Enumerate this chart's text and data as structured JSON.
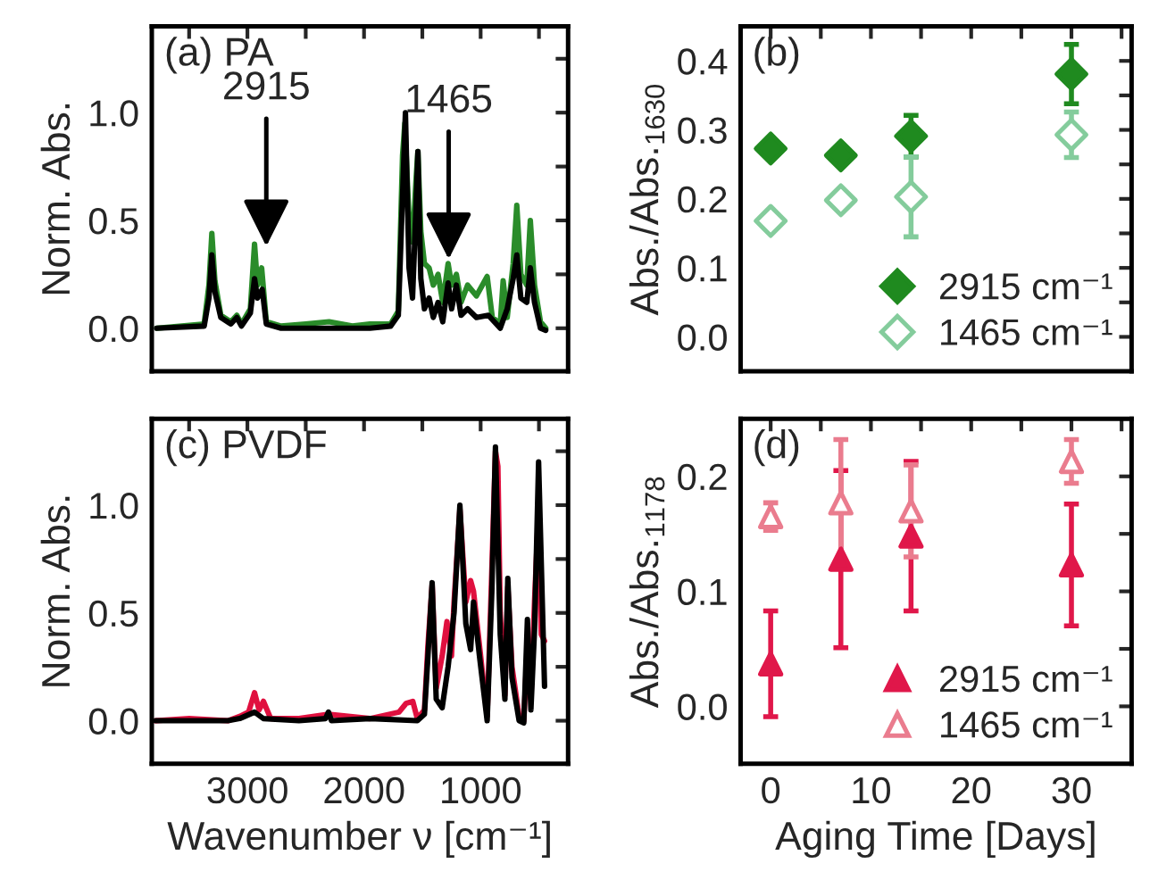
{
  "chart_data": [
    {
      "type": "line",
      "ylabel": "Norm. Abs.",
      "annotations": [
        "(a) PA",
        {
          "text": "2915",
          "x": 2838,
          "y": 0.38
        },
        {
          "text": "1465",
          "x": 1274,
          "y": 0.32
        }
      ],
      "xlim": [
        3820,
        250
      ],
      "xticks": [
        {
          "value": 3500,
          "label": null
        },
        {
          "value": 3000,
          "label": null
        },
        {
          "value": 2500,
          "label": null
        },
        {
          "value": 2000,
          "label": null
        },
        {
          "value": 1500,
          "label": null
        },
        {
          "value": 1000,
          "label": null
        },
        {
          "value": 500,
          "label": null
        }
      ],
      "ylim": [
        -0.2,
        1.4
      ],
      "yticks": [
        {
          "value": 0,
          "label": "0.0"
        },
        {
          "value": 0.25,
          "label": null
        },
        0.5,
        {
          "value": 0.75,
          "label": null
        },
        {
          "value": 1,
          "label": "1.0"
        },
        {
          "value": 1.25,
          "label": null
        }
      ],
      "tick_labels": "y",
      "grid": false,
      "line_style": "solid",
      "marker": "none",
      "series": [
        {
          "color": "#2a8c2a",
          "x": [
            3777,
            3371,
            3330,
            3305,
            3279,
            3228,
            3142,
            3091,
            3051,
            2975,
            2939,
            2914,
            2878,
            2838,
            2711,
            2500,
            2300,
            2100,
            1949,
            1772,
            1706,
            1670,
            1650,
            1614,
            1584,
            1553,
            1538,
            1513,
            1482,
            1442,
            1406,
            1365,
            1325,
            1279,
            1249,
            1208,
            1168,
            1112,
            1036,
            944,
            900,
            832,
            807,
            772,
            721,
            690,
            655,
            604,
            574,
            538,
            487,
            442
          ],
          "values": [
            0.0,
            0.02,
            0.2,
            0.44,
            0.22,
            0.06,
            0.03,
            0.06,
            0.02,
            0.09,
            0.39,
            0.2,
            0.28,
            0.03,
            0.01,
            0.02,
            0.03,
            0.01,
            0.02,
            0.02,
            0.08,
            0.8,
            0.95,
            0.5,
            0.4,
            0.7,
            0.82,
            0.45,
            0.3,
            0.28,
            0.2,
            0.25,
            0.12,
            0.3,
            0.2,
            0.25,
            0.12,
            0.2,
            0.15,
            0.24,
            0.05,
            0.02,
            0.22,
            0.05,
            0.3,
            0.57,
            0.25,
            0.2,
            0.5,
            0.2,
            0.03,
            0.0
          ]
        },
        {
          "color": "#000000",
          "x": [
            3777,
            3371,
            3330,
            3305,
            3279,
            3228,
            3142,
            3091,
            3051,
            2975,
            2939,
            2914,
            2873,
            2838,
            2711,
            2355,
            1949,
            1772,
            1706,
            1670,
            1645,
            1614,
            1584,
            1553,
            1538,
            1513,
            1482,
            1442,
            1406,
            1365,
            1325,
            1279,
            1249,
            1208,
            1168,
            1112,
            1036,
            934,
            832,
            772,
            721,
            690,
            655,
            604,
            574,
            538,
            487,
            442
          ],
          "values": [
            0.0,
            0.01,
            0.14,
            0.34,
            0.17,
            0.05,
            0.02,
            0.05,
            0.01,
            0.07,
            0.23,
            0.14,
            0.18,
            0.02,
            0.0,
            0.0,
            0.0,
            0.01,
            0.06,
            0.61,
            1.0,
            0.28,
            0.14,
            0.58,
            0.82,
            0.23,
            0.09,
            0.14,
            0.05,
            0.12,
            0.03,
            0.21,
            0.09,
            0.2,
            0.06,
            0.09,
            0.05,
            0.06,
            0.0,
            0.09,
            0.23,
            0.34,
            0.14,
            0.12,
            0.28,
            0.12,
            0.0,
            -0.01
          ]
        }
      ]
    },
    {
      "type": "scatter",
      "ylabel": "Abs./Abs.$_{1630}$",
      "annotations": [
        "(b)"
      ],
      "x": [
        0,
        7,
        14,
        30
      ],
      "xlim": [
        -3,
        36
      ],
      "xticks": [
        {
          "value": 0,
          "label": null
        },
        {
          "value": 5,
          "label": null
        },
        {
          "value": 10,
          "label": null
        },
        {
          "value": 15,
          "label": null
        },
        {
          "value": 20,
          "label": null
        },
        {
          "value": 25,
          "label": null
        },
        {
          "value": 30,
          "label": null
        },
        {
          "value": 35,
          "label": null
        }
      ],
      "ylim": [
        -0.05,
        0.45
      ],
      "yticks": [
        {
          "value": 0,
          "label": "0.0"
        },
        {
          "value": 0.05,
          "label": null
        },
        0.1,
        {
          "value": 0.15,
          "label": null
        },
        0.2,
        {
          "value": 0.25,
          "label": null
        },
        0.3,
        {
          "value": 0.35,
          "label": null
        },
        0.4
      ],
      "tick_labels": "y",
      "grid": false,
      "legend": "bottom right",
      "marker": "diamond",
      "series": [
        {
          "name": "2915 cm⁻¹",
          "color": "#1f8a1f",
          "values": [
            0.273,
            0.263,
            0.291,
            0.381
          ],
          "errors": [
            null,
            null,
            0.03,
            0.043
          ]
        },
        {
          "name": "1465 cm⁻¹",
          "color": "#84cc9c",
          "values": [
            0.168,
            0.198,
            0.203,
            0.293
          ],
          "errors": [
            null,
            null,
            0.058,
            0.033
          ]
        }
      ]
    },
    {
      "type": "line",
      "xlabel": "Wavenumber ν [cm⁻¹]",
      "ylabel": "Norm. Abs.",
      "annotations": [
        "(c) PVDF"
      ],
      "xlim": [
        3820,
        250
      ],
      "xticks": [
        {
          "value": 3500,
          "label": null
        },
        3000,
        {
          "value": 2500,
          "label": null
        },
        2000,
        {
          "value": 1500,
          "label": null
        },
        1000,
        {
          "value": 500,
          "label": null
        }
      ],
      "ylim": [
        -0.2,
        1.4
      ],
      "yticks": [
        {
          "value": 0,
          "label": "0.0"
        },
        {
          "value": 0.25,
          "label": null
        },
        0.5,
        {
          "value": 0.75,
          "label": null
        },
        {
          "value": 1,
          "label": "1.0"
        },
        {
          "value": 1.25,
          "label": null
        }
      ],
      "grid": false,
      "line_style": "solid",
      "marker": "none",
      "series": [
        {
          "color": "#e0103f",
          "x": [
            3787,
            3500,
            3168,
            3066,
            2990,
            2939,
            2900,
            2863,
            2800,
            2558,
            2305,
            1949,
            1700,
            1640,
            1582,
            1543,
            1482,
            1452,
            1416,
            1381,
            1330,
            1289,
            1250,
            1228,
            1178,
            1127,
            1086,
            1061,
            1010,
            944,
            904,
            873,
            852,
            832,
            792,
            767,
            731,
            670,
            630,
            599,
            569,
            538,
            510,
            480,
            452
          ],
          "values": [
            0.0,
            0.01,
            0.0,
            0.02,
            0.04,
            0.13,
            0.05,
            0.09,
            0.01,
            0.01,
            0.03,
            0.01,
            0.04,
            0.08,
            0.09,
            0.01,
            0.05,
            0.35,
            0.63,
            0.15,
            0.3,
            0.46,
            0.3,
            0.55,
            0.98,
            0.55,
            0.65,
            0.6,
            0.35,
            0.02,
            0.7,
            1.25,
            1.18,
            0.5,
            0.12,
            0.62,
            0.25,
            0.02,
            0.0,
            0.35,
            0.1,
            0.55,
            0.9,
            0.4,
            0.37
          ]
        },
        {
          "color": "#000000",
          "x": [
            3787,
            3168,
            3066,
            2939,
            2863,
            2558,
            2330,
            2305,
            2279,
            1949,
            1543,
            1482,
            1452,
            1416,
            1381,
            1330,
            1279,
            1228,
            1178,
            1127,
            1086,
            1061,
            1010,
            944,
            904,
            873,
            832,
            792,
            767,
            731,
            670,
            630,
            599,
            569,
            538,
            503,
            452
          ],
          "values": [
            0.0,
            0.0,
            0.01,
            0.04,
            0.01,
            0.0,
            0.01,
            0.04,
            0.0,
            0.01,
            0.0,
            0.03,
            0.3,
            0.64,
            0.1,
            0.06,
            0.25,
            0.5,
            1.0,
            0.45,
            0.33,
            0.55,
            0.3,
            0.0,
            0.6,
            1.27,
            0.4,
            0.1,
            0.66,
            0.2,
            0.0,
            -0.01,
            0.47,
            0.05,
            0.42,
            1.2,
            0.16
          ]
        }
      ]
    },
    {
      "type": "scatter",
      "xlabel": "Aging Time [Days]",
      "ylabel": "Abs./Abs.$_{1178}$",
      "annotations": [
        "(d)"
      ],
      "x": [
        0,
        7,
        14,
        30
      ],
      "xlim": [
        -3,
        36
      ],
      "xticks": [
        0,
        {
          "value": 5,
          "label": null
        },
        10,
        {
          "value": 15,
          "label": null
        },
        20,
        {
          "value": 25,
          "label": null
        },
        30,
        {
          "value": 35,
          "label": null
        }
      ],
      "ylim": [
        -0.05,
        0.25
      ],
      "yticks": [
        {
          "value": 0,
          "label": "0.0"
        },
        {
          "value": 0.05,
          "label": null
        },
        0.1,
        {
          "value": 0.15,
          "label": null
        },
        0.2
      ],
      "grid": false,
      "legend": "bottom right",
      "marker": "triangle",
      "series": [
        {
          "name": "2915 cm⁻¹",
          "color": "#e0174a",
          "values": [
            0.037,
            0.128,
            0.148,
            0.123
          ],
          "errors": [
            0.046,
            0.077,
            0.065,
            0.053
          ]
        },
        {
          "name": "1465 cm⁻¹",
          "color": "#ea7c8e",
          "values": [
            0.165,
            0.177,
            0.17,
            0.213
          ],
          "errors": [
            0.012,
            0.055,
            0.04,
            0.019
          ]
        }
      ]
    }
  ]
}
